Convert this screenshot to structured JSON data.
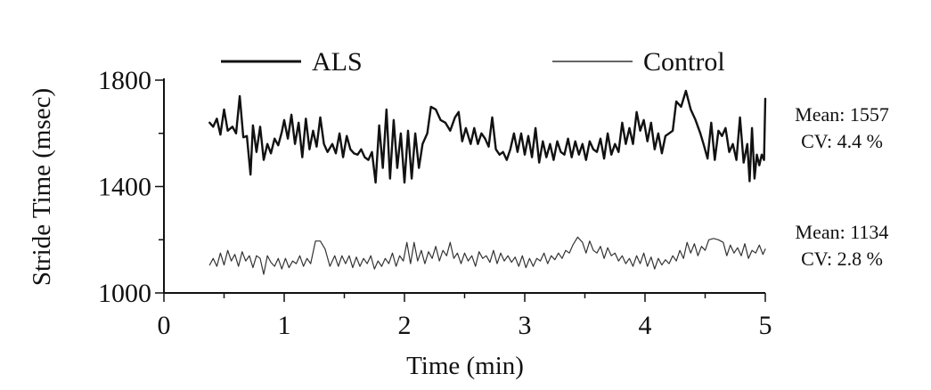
{
  "chart_data": {
    "type": "line",
    "xlabel": "Time (min)",
    "ylabel": "Stride Time (msec)",
    "xlim": [
      0,
      5
    ],
    "ylim": [
      1000,
      1800
    ],
    "x_ticks": [
      0,
      1,
      2,
      3,
      4,
      5
    ],
    "x_tick_labels": [
      "0",
      "1",
      "2",
      "3",
      "4",
      "5"
    ],
    "y_ticks": [
      1000,
      1400,
      1800
    ],
    "y_tick_labels": [
      "1000",
      "1400",
      "1800"
    ],
    "grid": false,
    "legend_position": "top",
    "series": [
      {
        "name": "ALS",
        "stroke_color": "#111111",
        "weight": "thick",
        "mean_label": "Mean: 1557",
        "cv_label": "CV: 4.4 %",
        "points": [
          [
            0.38,
            1640
          ],
          [
            0.41,
            1625
          ],
          [
            0.44,
            1655
          ],
          [
            0.47,
            1595
          ],
          [
            0.5,
            1690
          ],
          [
            0.53,
            1610
          ],
          [
            0.57,
            1625
          ],
          [
            0.6,
            1600
          ],
          [
            0.63,
            1740
          ],
          [
            0.66,
            1585
          ],
          [
            0.69,
            1590
          ],
          [
            0.72,
            1445
          ],
          [
            0.74,
            1630
          ],
          [
            0.77,
            1530
          ],
          [
            0.8,
            1625
          ],
          [
            0.83,
            1500
          ],
          [
            0.86,
            1560
          ],
          [
            0.89,
            1525
          ],
          [
            0.92,
            1580
          ],
          [
            0.95,
            1555
          ],
          [
            0.98,
            1605
          ],
          [
            1.0,
            1650
          ],
          [
            1.03,
            1580
          ],
          [
            1.06,
            1670
          ],
          [
            1.09,
            1560
          ],
          [
            1.12,
            1640
          ],
          [
            1.15,
            1510
          ],
          [
            1.18,
            1655
          ],
          [
            1.21,
            1540
          ],
          [
            1.24,
            1610
          ],
          [
            1.27,
            1550
          ],
          [
            1.3,
            1660
          ],
          [
            1.33,
            1560
          ],
          [
            1.36,
            1530
          ],
          [
            1.4,
            1560
          ],
          [
            1.43,
            1525
          ],
          [
            1.46,
            1600
          ],
          [
            1.49,
            1510
          ],
          [
            1.52,
            1590
          ],
          [
            1.55,
            1540
          ],
          [
            1.58,
            1525
          ],
          [
            1.61,
            1520
          ],
          [
            1.64,
            1540
          ],
          [
            1.67,
            1510
          ],
          [
            1.7,
            1500
          ],
          [
            1.73,
            1530
          ],
          [
            1.76,
            1415
          ],
          [
            1.79,
            1630
          ],
          [
            1.82,
            1470
          ],
          [
            1.85,
            1690
          ],
          [
            1.88,
            1430
          ],
          [
            1.91,
            1650
          ],
          [
            1.94,
            1470
          ],
          [
            1.97,
            1600
          ],
          [
            2.0,
            1415
          ],
          [
            2.03,
            1610
          ],
          [
            2.06,
            1430
          ],
          [
            2.09,
            1600
          ],
          [
            2.12,
            1470
          ],
          [
            2.15,
            1560
          ],
          [
            2.19,
            1600
          ],
          [
            2.22,
            1700
          ],
          [
            2.26,
            1690
          ],
          [
            2.3,
            1650
          ],
          [
            2.34,
            1640
          ],
          [
            2.38,
            1610
          ],
          [
            2.42,
            1660
          ],
          [
            2.45,
            1680
          ],
          [
            2.48,
            1570
          ],
          [
            2.51,
            1620
          ],
          [
            2.55,
            1560
          ],
          [
            2.58,
            1620
          ],
          [
            2.61,
            1560
          ],
          [
            2.64,
            1600
          ],
          [
            2.67,
            1580
          ],
          [
            2.7,
            1550
          ],
          [
            2.73,
            1660
          ],
          [
            2.76,
            1540
          ],
          [
            2.79,
            1520
          ],
          [
            2.82,
            1530
          ],
          [
            2.85,
            1500
          ],
          [
            2.88,
            1540
          ],
          [
            2.91,
            1600
          ],
          [
            2.94,
            1530
          ],
          [
            2.97,
            1600
          ],
          [
            3.0,
            1520
          ],
          [
            3.03,
            1590
          ],
          [
            3.06,
            1510
          ],
          [
            3.09,
            1620
          ],
          [
            3.12,
            1490
          ],
          [
            3.15,
            1570
          ],
          [
            3.18,
            1510
          ],
          [
            3.21,
            1560
          ],
          [
            3.24,
            1500
          ],
          [
            3.27,
            1570
          ],
          [
            3.3,
            1530
          ],
          [
            3.33,
            1520
          ],
          [
            3.36,
            1580
          ],
          [
            3.39,
            1510
          ],
          [
            3.42,
            1570
          ],
          [
            3.45,
            1520
          ],
          [
            3.48,
            1560
          ],
          [
            3.51,
            1500
          ],
          [
            3.54,
            1570
          ],
          [
            3.57,
            1540
          ],
          [
            3.6,
            1530
          ],
          [
            3.63,
            1580
          ],
          [
            3.66,
            1505
          ],
          [
            3.69,
            1600
          ],
          [
            3.72,
            1520
          ],
          [
            3.75,
            1560
          ],
          [
            3.78,
            1530
          ],
          [
            3.81,
            1640
          ],
          [
            3.84,
            1560
          ],
          [
            3.87,
            1620
          ],
          [
            3.9,
            1560
          ],
          [
            3.93,
            1680
          ],
          [
            3.96,
            1610
          ],
          [
            3.99,
            1650
          ],
          [
            4.02,
            1570
          ],
          [
            4.05,
            1640
          ],
          [
            4.08,
            1540
          ],
          [
            4.11,
            1600
          ],
          [
            4.14,
            1525
          ],
          [
            4.17,
            1590
          ],
          [
            4.2,
            1600
          ],
          [
            4.23,
            1610
          ],
          [
            4.26,
            1720
          ],
          [
            4.3,
            1700
          ],
          [
            4.34,
            1760
          ],
          [
            4.38,
            1690
          ],
          [
            4.42,
            1650
          ],
          [
            4.46,
            1600
          ],
          [
            4.49,
            1555
          ],
          [
            4.52,
            1505
          ],
          [
            4.55,
            1640
          ],
          [
            4.58,
            1500
          ],
          [
            4.61,
            1610
          ],
          [
            4.64,
            1590
          ],
          [
            4.67,
            1620
          ],
          [
            4.7,
            1530
          ],
          [
            4.73,
            1560
          ],
          [
            4.76,
            1500
          ],
          [
            4.79,
            1660
          ],
          [
            4.82,
            1490
          ],
          [
            4.85,
            1560
          ],
          [
            4.87,
            1420
          ],
          [
            4.89,
            1620
          ],
          [
            4.91,
            1430
          ],
          [
            4.93,
            1520
          ],
          [
            4.95,
            1480
          ],
          [
            4.97,
            1520
          ],
          [
            4.99,
            1500
          ],
          [
            5.0,
            1730
          ]
        ]
      },
      {
        "name": "Control",
        "stroke_color": "#333333",
        "weight": "thin",
        "mean_label": "Mean: 1134",
        "cv_label": "CV: 2.8 %",
        "points": [
          [
            0.38,
            1105
          ],
          [
            0.41,
            1130
          ],
          [
            0.44,
            1100
          ],
          [
            0.47,
            1150
          ],
          [
            0.5,
            1105
          ],
          [
            0.53,
            1160
          ],
          [
            0.56,
            1120
          ],
          [
            0.59,
            1145
          ],
          [
            0.62,
            1100
          ],
          [
            0.65,
            1155
          ],
          [
            0.68,
            1120
          ],
          [
            0.71,
            1140
          ],
          [
            0.74,
            1095
          ],
          [
            0.77,
            1140
          ],
          [
            0.8,
            1130
          ],
          [
            0.83,
            1070
          ],
          [
            0.86,
            1140
          ],
          [
            0.89,
            1115
          ],
          [
            0.92,
            1100
          ],
          [
            0.95,
            1130
          ],
          [
            0.98,
            1090
          ],
          [
            1.01,
            1130
          ],
          [
            1.04,
            1095
          ],
          [
            1.07,
            1120
          ],
          [
            1.1,
            1110
          ],
          [
            1.13,
            1140
          ],
          [
            1.16,
            1100
          ],
          [
            1.19,
            1130
          ],
          [
            1.22,
            1110
          ],
          [
            1.26,
            1195
          ],
          [
            1.3,
            1195
          ],
          [
            1.34,
            1165
          ],
          [
            1.38,
            1100
          ],
          [
            1.42,
            1140
          ],
          [
            1.45,
            1100
          ],
          [
            1.48,
            1140
          ],
          [
            1.51,
            1110
          ],
          [
            1.54,
            1140
          ],
          [
            1.57,
            1095
          ],
          [
            1.6,
            1135
          ],
          [
            1.63,
            1100
          ],
          [
            1.66,
            1130
          ],
          [
            1.69,
            1110
          ],
          [
            1.72,
            1140
          ],
          [
            1.75,
            1090
          ],
          [
            1.78,
            1120
          ],
          [
            1.81,
            1100
          ],
          [
            1.84,
            1130
          ],
          [
            1.87,
            1110
          ],
          [
            1.9,
            1150
          ],
          [
            1.93,
            1100
          ],
          [
            1.96,
            1140
          ],
          [
            1.99,
            1120
          ],
          [
            2.02,
            1190
          ],
          [
            2.05,
            1110
          ],
          [
            2.08,
            1190
          ],
          [
            2.11,
            1120
          ],
          [
            2.14,
            1160
          ],
          [
            2.17,
            1110
          ],
          [
            2.2,
            1155
          ],
          [
            2.23,
            1130
          ],
          [
            2.26,
            1175
          ],
          [
            2.29,
            1120
          ],
          [
            2.32,
            1160
          ],
          [
            2.35,
            1140
          ],
          [
            2.38,
            1190
          ],
          [
            2.41,
            1130
          ],
          [
            2.44,
            1150
          ],
          [
            2.47,
            1110
          ],
          [
            2.5,
            1150
          ],
          [
            2.53,
            1120
          ],
          [
            2.56,
            1140
          ],
          [
            2.59,
            1100
          ],
          [
            2.62,
            1155
          ],
          [
            2.65,
            1130
          ],
          [
            2.68,
            1140
          ],
          [
            2.71,
            1115
          ],
          [
            2.74,
            1160
          ],
          [
            2.77,
            1110
          ],
          [
            2.8,
            1150
          ],
          [
            2.83,
            1120
          ],
          [
            2.86,
            1140
          ],
          [
            2.89,
            1115
          ],
          [
            2.92,
            1135
          ],
          [
            2.95,
            1100
          ],
          [
            2.98,
            1140
          ],
          [
            3.01,
            1095
          ],
          [
            3.04,
            1130
          ],
          [
            3.07,
            1100
          ],
          [
            3.1,
            1130
          ],
          [
            3.13,
            1120
          ],
          [
            3.16,
            1150
          ],
          [
            3.19,
            1110
          ],
          [
            3.22,
            1140
          ],
          [
            3.25,
            1125
          ],
          [
            3.28,
            1150
          ],
          [
            3.31,
            1130
          ],
          [
            3.34,
            1160
          ],
          [
            3.37,
            1150
          ],
          [
            3.4,
            1180
          ],
          [
            3.44,
            1210
          ],
          [
            3.48,
            1190
          ],
          [
            3.51,
            1150
          ],
          [
            3.54,
            1195
          ],
          [
            3.57,
            1160
          ],
          [
            3.6,
            1150
          ],
          [
            3.63,
            1175
          ],
          [
            3.66,
            1130
          ],
          [
            3.69,
            1170
          ],
          [
            3.72,
            1140
          ],
          [
            3.75,
            1150
          ],
          [
            3.78,
            1120
          ],
          [
            3.81,
            1140
          ],
          [
            3.84,
            1110
          ],
          [
            3.87,
            1130
          ],
          [
            3.9,
            1100
          ],
          [
            3.93,
            1140
          ],
          [
            3.96,
            1110
          ],
          [
            3.99,
            1150
          ],
          [
            4.02,
            1100
          ],
          [
            4.05,
            1135
          ],
          [
            4.08,
            1090
          ],
          [
            4.11,
            1130
          ],
          [
            4.14,
            1105
          ],
          [
            4.17,
            1125
          ],
          [
            4.2,
            1110
          ],
          [
            4.23,
            1140
          ],
          [
            4.26,
            1120
          ],
          [
            4.29,
            1160
          ],
          [
            4.32,
            1130
          ],
          [
            4.35,
            1190
          ],
          [
            4.38,
            1150
          ],
          [
            4.41,
            1185
          ],
          [
            4.44,
            1140
          ],
          [
            4.47,
            1175
          ],
          [
            4.5,
            1160
          ],
          [
            4.53,
            1200
          ],
          [
            4.57,
            1205
          ],
          [
            4.61,
            1200
          ],
          [
            4.65,
            1190
          ],
          [
            4.68,
            1140
          ],
          [
            4.71,
            1180
          ],
          [
            4.74,
            1150
          ],
          [
            4.77,
            1170
          ],
          [
            4.8,
            1140
          ],
          [
            4.83,
            1185
          ],
          [
            4.86,
            1130
          ],
          [
            4.89,
            1160
          ],
          [
            4.92,
            1150
          ],
          [
            4.95,
            1180
          ],
          [
            4.98,
            1145
          ],
          [
            5.0,
            1165
          ]
        ]
      }
    ]
  }
}
